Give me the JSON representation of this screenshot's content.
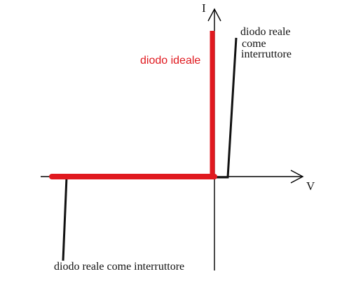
{
  "axes": {
    "y_label": "I",
    "x_label": "V",
    "axis_color": "#000000"
  },
  "labels": {
    "ideal_diode": "diodo ideale",
    "real_switch_top_line1": "diodo reale",
    "real_switch_top_line2": "come",
    "real_switch_top_line3": "interruttore",
    "real_switch_bottom": "diodo reale come interruttore"
  },
  "colors": {
    "ideal": "#e0191f",
    "real": "#111111",
    "background": "#ffffff"
  }
}
